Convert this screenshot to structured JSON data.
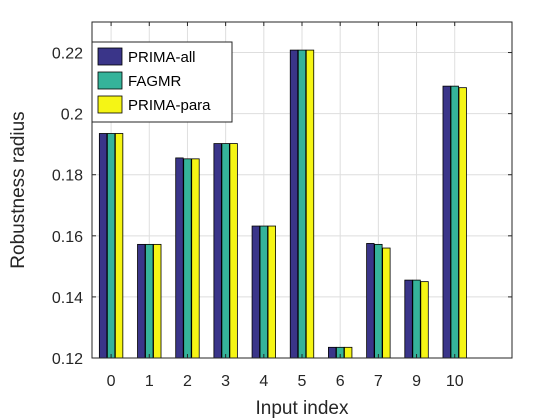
{
  "chart_data": {
    "type": "bar",
    "xlabel": "Input index",
    "ylabel": "Robustness radius",
    "categories": [
      "0",
      "1",
      "2",
      "3",
      "4",
      "5",
      "6",
      "7",
      "9",
      "10"
    ],
    "ylim": [
      0.12,
      0.23
    ],
    "yticks": [
      0.12,
      0.14,
      0.16,
      0.18,
      0.2,
      0.22
    ],
    "ytick_labels": [
      "0.12",
      "0.14",
      "0.16",
      "0.18",
      "0.2",
      "0.22"
    ],
    "grid": true,
    "legend_position": "top-left",
    "series": [
      {
        "name": "PRIMA-all",
        "color": "#3a3589",
        "values": [
          0.1935,
          0.1572,
          0.1855,
          0.1902,
          0.1632,
          0.2208,
          0.1235,
          0.1575,
          0.1455,
          0.209
        ]
      },
      {
        "name": "FAGMR",
        "color": "#35b39a",
        "values": [
          0.1935,
          0.1572,
          0.1852,
          0.1902,
          0.1632,
          0.2208,
          0.1235,
          0.1572,
          0.1455,
          0.209
        ]
      },
      {
        "name": "PRIMA-para",
        "color": "#f5f515",
        "values": [
          0.1935,
          0.1572,
          0.1852,
          0.1902,
          0.1632,
          0.2208,
          0.1235,
          0.156,
          0.145,
          0.2085
        ]
      }
    ]
  }
}
